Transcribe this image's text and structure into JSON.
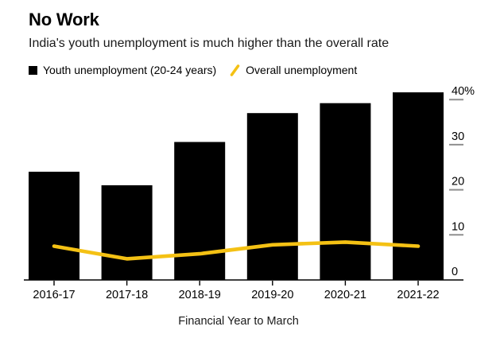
{
  "header": {
    "title": "No Work",
    "subtitle": "India's youth unemployment is much higher than the overall rate"
  },
  "legend": {
    "items": [
      {
        "label": "Youth unemployment (20-24 years)",
        "swatch": "square",
        "color": "#000000"
      },
      {
        "label": "Overall unemployment",
        "swatch": "slash",
        "color": "#F4C114"
      }
    ]
  },
  "chart_data": {
    "type": "bar",
    "categories": [
      "2016-17",
      "2017-18",
      "2018-19",
      "2019-20",
      "2020-21",
      "2021-22"
    ],
    "series": [
      {
        "name": "Youth unemployment (20-24 years)",
        "type": "bar",
        "color": "#000000",
        "values": [
          24,
          21,
          30.6,
          37,
          39.2,
          41.6
        ]
      },
      {
        "name": "Overall unemployment",
        "type": "line",
        "color": "#F4C114",
        "values": [
          7.5,
          4.7,
          5.8,
          7.8,
          8.4,
          7.5
        ]
      }
    ],
    "title": "No Work",
    "subtitle": "India's youth unemployment is much higher than the overall rate",
    "xlabel": "Financial Year to March",
    "ylabel": "",
    "ylim": [
      0,
      42
    ],
    "yticks": [
      0,
      10,
      20,
      30,
      40
    ],
    "ytick_top_label": "40%",
    "axis_side": "right",
    "grid": false,
    "legend_position": "top"
  },
  "colors": {
    "background": "#ffffff",
    "bar": "#000000",
    "line": "#F4C114",
    "tick_dash": "#8f8f8f",
    "axis_line": "#000000",
    "text": "#000000"
  }
}
